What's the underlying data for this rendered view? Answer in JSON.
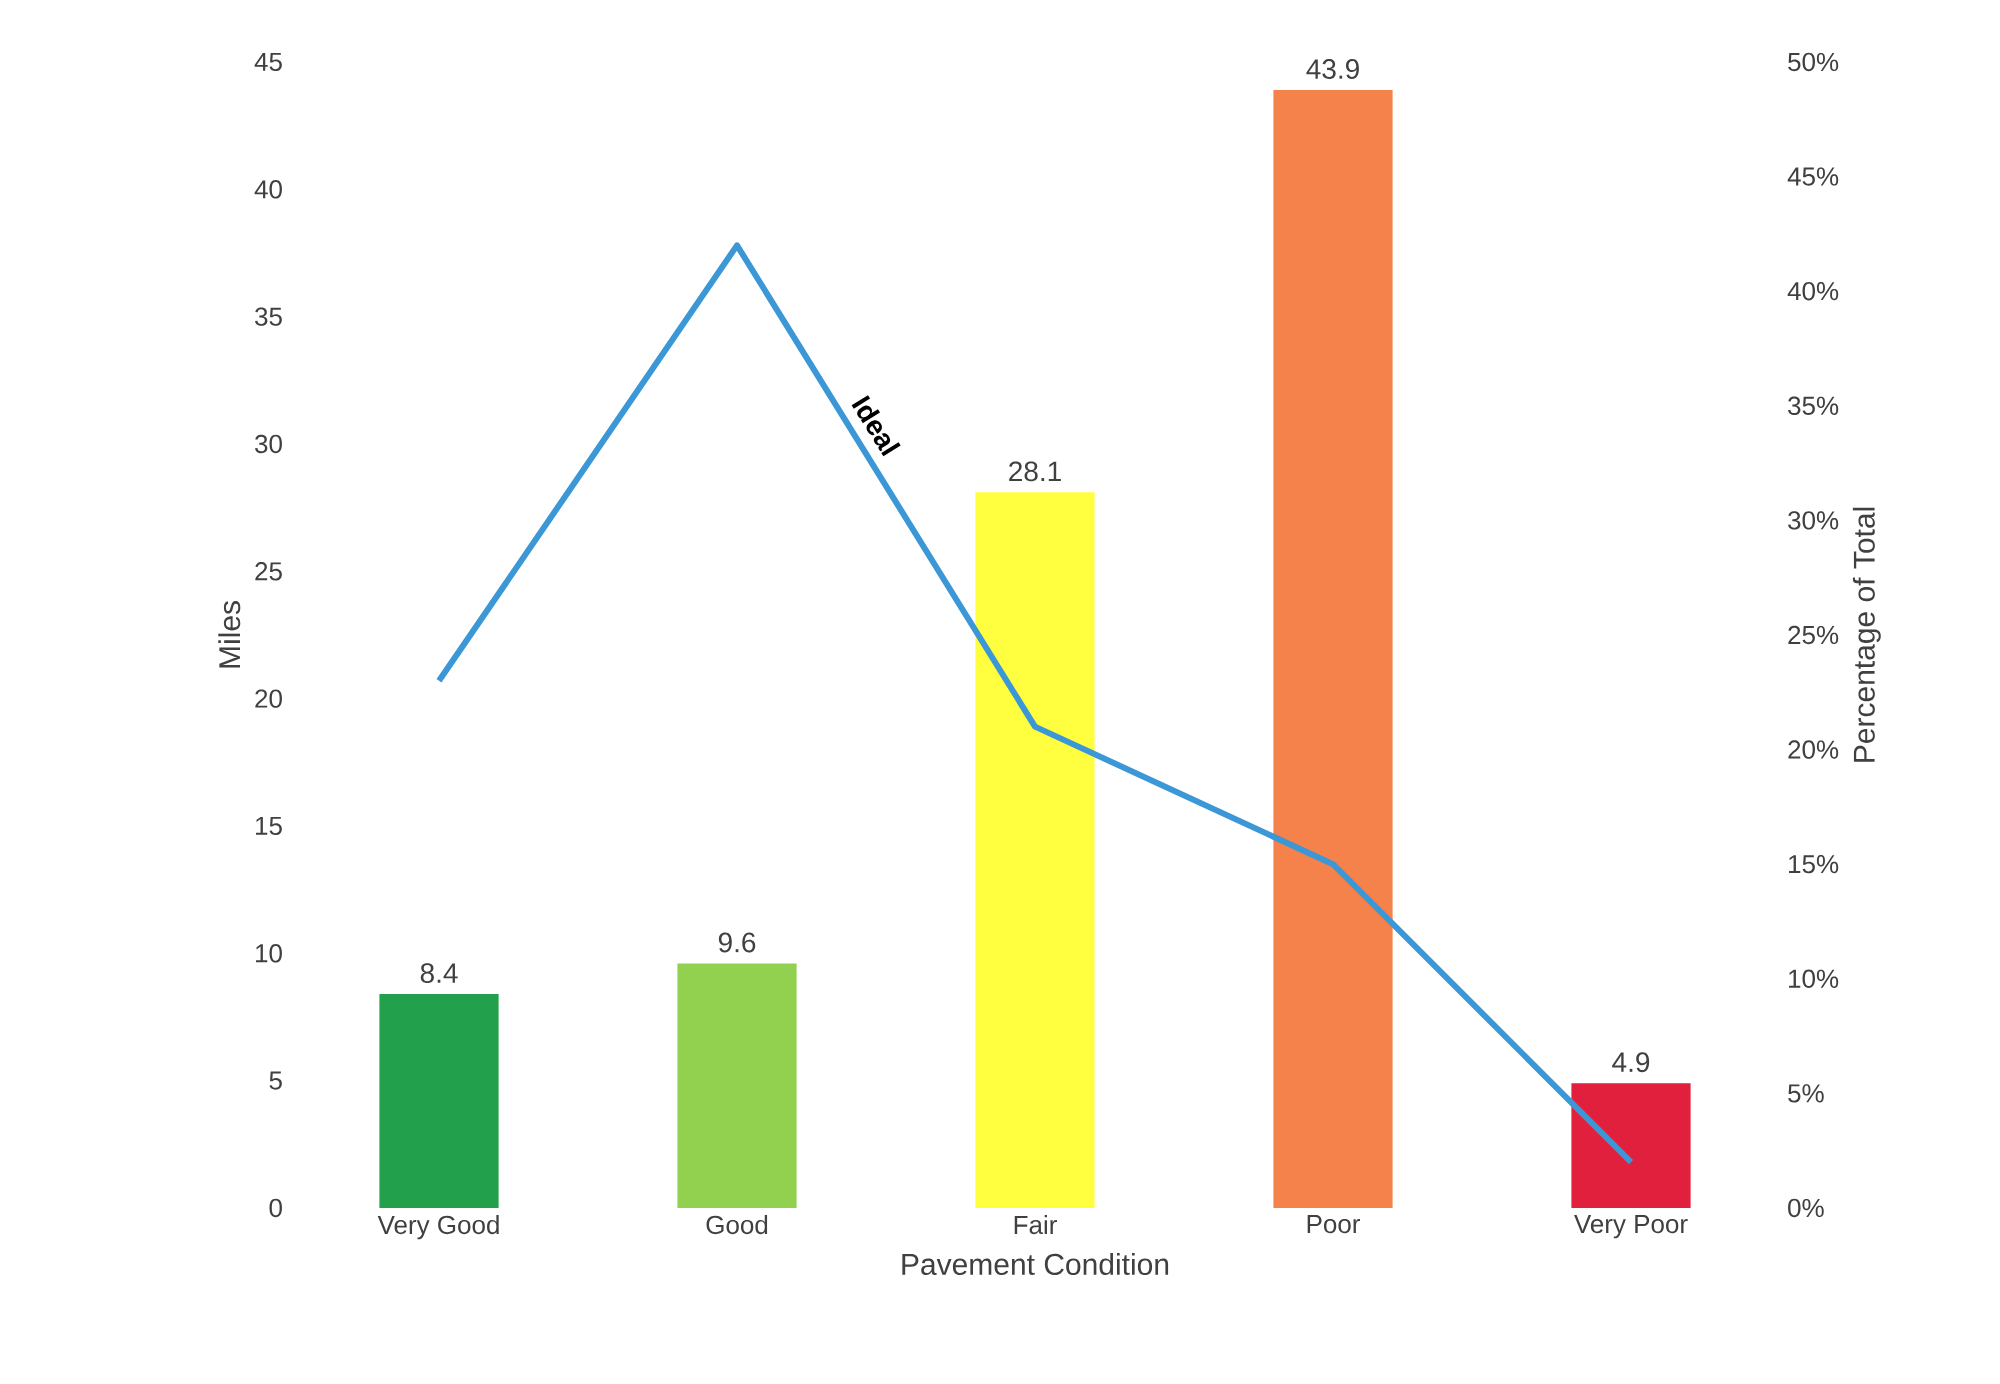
{
  "chart_data": {
    "type": "bar",
    "xlabel": "Pavement Condition",
    "ylabel": "Miles",
    "y2label": "Percentage of Total",
    "categories": [
      "Very Good",
      "Good",
      "Fair",
      "Poor",
      "Very Poor"
    ],
    "series": [
      {
        "colors": [
          "#22a04b",
          "#92d050",
          "#ffff3f",
          "#f4824a",
          "#e0203c"
        ],
        "values": [
          8.4,
          9.6,
          28.1,
          43.9,
          4.9
        ],
        "value_labels": [
          "8.4",
          "9.6",
          "28.1",
          "43.9",
          "4.9"
        ]
      },
      {
        "type": "line",
        "axis": "y2",
        "color": "#3b97d6",
        "values": [
          23,
          42,
          21,
          15,
          2
        ]
      }
    ],
    "annotations": [
      "Ideal"
    ],
    "ylim": [
      0,
      45
    ],
    "yticks": [
      0,
      5,
      10,
      15,
      20,
      25,
      30,
      35,
      40,
      45
    ],
    "y2lim": [
      0,
      50
    ],
    "y2ticks": [
      {
        "value": 0,
        "label": "0%"
      },
      {
        "value": 5,
        "label": "5%"
      },
      {
        "value": 10,
        "label": "10%"
      },
      {
        "value": 15,
        "label": "15%"
      },
      {
        "value": 20,
        "label": "20%"
      },
      {
        "value": 25,
        "label": "25%"
      },
      {
        "value": 30,
        "label": "30%"
      },
      {
        "value": 35,
        "label": "35%"
      },
      {
        "value": 40,
        "label": "40%"
      },
      {
        "value": 45,
        "label": "45%"
      },
      {
        "value": 50,
        "label": "50%"
      }
    ],
    "grid": false
  }
}
